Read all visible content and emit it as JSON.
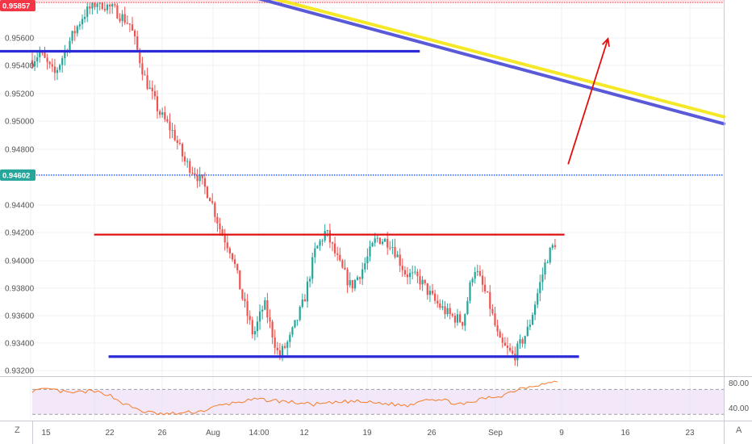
{
  "chart_data": [
    {
      "type": "candlestick",
      "title": "",
      "xlabel": "",
      "ylabel": "",
      "ylim": [
        0.9315,
        0.9591
      ],
      "grid": true,
      "x_tick_labels": [
        "15",
        "22",
        "26",
        "Aug",
        "14:00",
        "12",
        "19",
        "26",
        "Sep",
        "9",
        "16",
        "23"
      ],
      "y_tick_labels": [
        "0.95800",
        "0.95600",
        "0.95400",
        "0.95200",
        "0.95000",
        "0.94800",
        "0.94400",
        "0.94200",
        "0.94000",
        "0.93800",
        "0.93600",
        "0.93400",
        "0.93200"
      ],
      "y_tick_values": [
        0.958,
        0.956,
        0.954,
        0.952,
        0.95,
        0.948,
        0.944,
        0.942,
        0.94,
        0.938,
        0.936,
        0.934,
        0.932
      ],
      "price_badges": [
        {
          "label": "0.95857",
          "value": 0.95857,
          "color": "#f23645"
        },
        {
          "label": "0.94602",
          "value": 0.94602,
          "color": "#26a69a"
        }
      ],
      "key_prices": {
        "high": 0.95857,
        "last": 0.94602
      },
      "horizontal_levels": [
        {
          "value": 0.95857,
          "color": "#f23645",
          "style": "dotted-band",
          "x_from": 0.0,
          "x_to": 1.0
        },
        {
          "value": 0.9549,
          "color": "#2d2bd8",
          "style": "solid",
          "x_from": 0.0,
          "x_to": 0.58
        },
        {
          "value": 0.94602,
          "color": "#2962ff",
          "style": "dotted",
          "x_from": 0.0,
          "x_to": 1.0
        },
        {
          "value": 0.94175,
          "color": "#e01010",
          "style": "solid",
          "x_from": 0.13,
          "x_to": 0.78
        },
        {
          "value": 0.933,
          "color": "#2d2bd8",
          "style": "solid",
          "x_from": 0.15,
          "x_to": 0.8
        }
      ],
      "trendlines": [
        {
          "from": [
            0.34,
            0.9592
          ],
          "to": [
            1.0,
            0.9502
          ],
          "color": "#f5e826"
        },
        {
          "from": [
            0.32,
            0.9592
          ],
          "to": [
            1.0,
            0.9497
          ],
          "color": "#5a5ad8"
        }
      ],
      "arrow": {
        "from": [
          0.785,
          0.9468
        ],
        "to": [
          0.84,
          0.9558
        ],
        "color": "#e01010"
      },
      "price_path": [
        [
          0.0,
          0.95
        ],
        [
          0.01,
          0.9522
        ],
        [
          0.03,
          0.9535
        ],
        [
          0.055,
          0.9548
        ],
        [
          0.075,
          0.9532
        ],
        [
          0.095,
          0.9555
        ],
        [
          0.115,
          0.9575
        ],
        [
          0.135,
          0.9585
        ],
        [
          0.16,
          0.9578
        ],
        [
          0.18,
          0.9568
        ],
        [
          0.2,
          0.953
        ],
        [
          0.22,
          0.9505
        ],
        [
          0.24,
          0.949
        ],
        [
          0.255,
          0.947
        ],
        [
          0.27,
          0.9462
        ],
        [
          0.29,
          0.9445
        ],
        [
          0.305,
          0.942
        ],
        [
          0.32,
          0.9405
        ],
        [
          0.335,
          0.9372
        ],
        [
          0.35,
          0.9345
        ],
        [
          0.365,
          0.9368
        ],
        [
          0.385,
          0.933
        ],
        [
          0.4,
          0.9342
        ],
        [
          0.42,
          0.937
        ],
        [
          0.435,
          0.9405
        ],
        [
          0.45,
          0.942
        ],
        [
          0.47,
          0.9395
        ],
        [
          0.485,
          0.938
        ],
        [
          0.5,
          0.9392
        ],
        [
          0.52,
          0.9415
        ],
        [
          0.54,
          0.9412
        ],
        [
          0.56,
          0.939
        ],
        [
          0.58,
          0.9385
        ],
        [
          0.6,
          0.937
        ],
        [
          0.62,
          0.936
        ],
        [
          0.64,
          0.9355
        ],
        [
          0.655,
          0.9395
        ],
        [
          0.675,
          0.937
        ],
        [
          0.69,
          0.934
        ],
        [
          0.71,
          0.933
        ],
        [
          0.73,
          0.935
        ],
        [
          0.755,
          0.94
        ],
        [
          0.775,
          0.942
        ],
        [
          0.8,
          0.9435
        ],
        [
          0.82,
          0.946
        ],
        [
          0.835,
          0.9462
        ]
      ]
    },
    {
      "type": "line",
      "indicator": "RSI",
      "ylim": [
        20,
        90
      ],
      "y_tick_labels": [
        "80.00",
        "40.00"
      ],
      "y_tick_values": [
        80,
        40
      ],
      "band": [
        30,
        70
      ],
      "band_color": "#e9d8f5",
      "line_color": "#f57c28",
      "points": [
        [
          0.0,
          68
        ],
        [
          0.04,
          70
        ],
        [
          0.08,
          64
        ],
        [
          0.12,
          67
        ],
        [
          0.16,
          63
        ],
        [
          0.2,
          45
        ],
        [
          0.24,
          34
        ],
        [
          0.28,
          30
        ],
        [
          0.32,
          32
        ],
        [
          0.36,
          35
        ],
        [
          0.4,
          44
        ],
        [
          0.44,
          50
        ],
        [
          0.48,
          54
        ],
        [
          0.52,
          52
        ],
        [
          0.56,
          49
        ],
        [
          0.6,
          46
        ],
        [
          0.64,
          48
        ],
        [
          0.68,
          51
        ],
        [
          0.72,
          49
        ],
        [
          0.76,
          47
        ],
        [
          0.8,
          44
        ],
        [
          0.84,
          56
        ],
        [
          0.88,
          52
        ],
        [
          0.92,
          45
        ],
        [
          0.96,
          55
        ],
        [
          1.0,
          60
        ],
        [
          1.04,
          72
        ],
        [
          1.08,
          78
        ],
        [
          1.12,
          82
        ]
      ]
    }
  ],
  "ui": {
    "timezone_letter": "Z",
    "auto_scale_letter": "A"
  }
}
